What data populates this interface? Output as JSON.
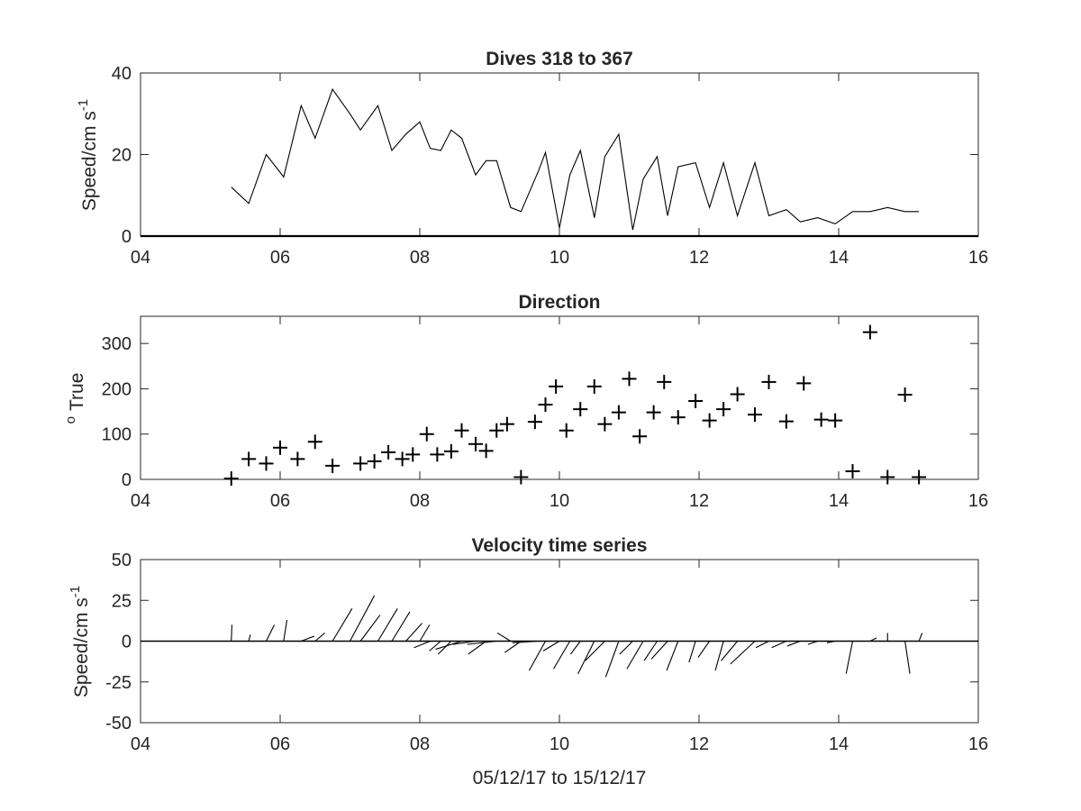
{
  "chart_data": [
    {
      "type": "line",
      "title": "Dives 318 to 367",
      "ylabel": "Speed/cm s",
      "ylabel_superscript": "-1",
      "xlim": [
        4,
        16
      ],
      "ylim": [
        0,
        40
      ],
      "xticks": [
        "04",
        "06",
        "08",
        "10",
        "12",
        "14",
        "16"
      ],
      "yticks": [
        "0",
        "20",
        "40"
      ],
      "color": "#000000",
      "x": [
        5.3,
        5.55,
        5.8,
        6.05,
        6.3,
        6.5,
        6.75,
        7.0,
        7.15,
        7.4,
        7.6,
        7.8,
        8.0,
        8.15,
        8.3,
        8.45,
        8.6,
        8.8,
        8.95,
        9.1,
        9.3,
        9.45,
        9.7,
        9.8,
        10.0,
        10.15,
        10.3,
        10.5,
        10.65,
        10.85,
        11.05,
        11.2,
        11.4,
        11.55,
        11.7,
        11.95,
        12.15,
        12.35,
        12.55,
        12.8,
        13.0,
        13.25,
        13.45,
        13.7,
        13.95,
        14.2,
        14.45,
        14.7,
        14.95,
        15.15
      ],
      "y": [
        12,
        8,
        20,
        14.5,
        32,
        24,
        36,
        30,
        26,
        32,
        21,
        25,
        28,
        21.5,
        21,
        26,
        24,
        15,
        18.5,
        18.5,
        7,
        6,
        16,
        20.5,
        2,
        15,
        21,
        4.5,
        19.5,
        25,
        1.5,
        14,
        19.5,
        5,
        17,
        18,
        7,
        18,
        5,
        18,
        5,
        6.5,
        3.5,
        4.5,
        3,
        6,
        6,
        7,
        6,
        6
      ]
    },
    {
      "type": "scatter",
      "title": "Direction",
      "ylabel": "True",
      "ylabel_prefix": "o",
      "marker": "+",
      "xlim": [
        4,
        16
      ],
      "ylim": [
        0,
        360
      ],
      "xticks": [
        "04",
        "06",
        "08",
        "10",
        "12",
        "14",
        "16"
      ],
      "yticks": [
        "0",
        "100",
        "200",
        "300"
      ],
      "color": "#000000",
      "x": [
        5.3,
        5.55,
        5.8,
        6.0,
        6.25,
        6.5,
        6.75,
        7.15,
        7.35,
        7.55,
        7.75,
        7.9,
        8.1,
        8.25,
        8.45,
        8.6,
        8.8,
        8.95,
        9.1,
        9.25,
        9.45,
        9.65,
        9.8,
        9.95,
        10.1,
        10.3,
        10.5,
        10.65,
        10.85,
        11.0,
        11.15,
        11.35,
        11.5,
        11.7,
        11.95,
        12.15,
        12.35,
        12.55,
        12.8,
        13.0,
        13.25,
        13.5,
        13.75,
        13.95,
        14.2,
        14.45,
        14.7,
        14.95,
        15.15
      ],
      "y": [
        2,
        45,
        35,
        70,
        45,
        83,
        30,
        35,
        40,
        60,
        45,
        55,
        100,
        55,
        62,
        108,
        78,
        63,
        108,
        122,
        5,
        127,
        165,
        205,
        108,
        155,
        205,
        122,
        148,
        222,
        95,
        148,
        215,
        137,
        173,
        130,
        155,
        188,
        143,
        215,
        128,
        212,
        132,
        130,
        18,
        325,
        5,
        187,
        5
      ]
    },
    {
      "type": "quiver",
      "title": "Velocity time series",
      "ylabel": "Speed/cm s",
      "ylabel_superscript": "-1",
      "xlabel": "05/12/17 to 15/12/17",
      "xlim": [
        4,
        16
      ],
      "ylim": [
        -50,
        50
      ],
      "xticks": [
        "04",
        "06",
        "08",
        "10",
        "12",
        "14",
        "16"
      ],
      "yticks": [
        "-50",
        "-25",
        "0",
        "25",
        "50"
      ],
      "color": "#000000",
      "x": [
        5.3,
        5.55,
        5.8,
        6.05,
        6.3,
        6.5,
        6.75,
        7.0,
        7.15,
        7.4,
        7.6,
        7.8,
        8.0,
        8.15,
        8.3,
        8.45,
        8.6,
        8.8,
        8.95,
        9.1,
        9.3,
        9.45,
        9.7,
        9.8,
        10.0,
        10.15,
        10.3,
        10.5,
        10.65,
        10.85,
        11.05,
        11.2,
        11.4,
        11.55,
        11.7,
        11.95,
        12.15,
        12.35,
        12.55,
        12.8,
        13.0,
        13.25,
        13.45,
        13.7,
        13.95,
        14.2,
        14.45,
        14.7,
        14.95,
        15.15
      ],
      "u": [
        0.4,
        1.0,
        5.0,
        2.0,
        8.0,
        6.0,
        12.0,
        15.0,
        12.0,
        12.0,
        11.0,
        10.0,
        6.0,
        -10.0,
        -7.0,
        -8.0,
        -16.0,
        -14.0,
        -11.0,
        -18.0,
        -8.0,
        -10.0,
        -16.0,
        -10.0,
        -10.0,
        -10.0,
        -6.0,
        -10.0,
        -12.0,
        -8.0,
        -8.0,
        -10.0,
        -8.0,
        -10.0,
        -7.0,
        -4.0,
        -7.0,
        -5.0,
        -10.0,
        -15.0,
        -8.0,
        -9.0,
        -8.0,
        -6.0,
        -5.0,
        -4.0,
        4.0,
        0.0,
        3.0,
        2.0
      ],
      "v": [
        10.0,
        4.0,
        10.0,
        13.0,
        3.0,
        5.0,
        20.0,
        28.0,
        16.0,
        20.0,
        18.0,
        11.0,
        10.0,
        -4.0,
        -6.0,
        -8.0,
        -5.0,
        -2.0,
        -8.0,
        -2.0,
        5.0,
        -7.0,
        -1.0,
        -18.0,
        -6.0,
        -17.0,
        -8.0,
        -20.0,
        -12.0,
        -22.0,
        -8.0,
        -17.0,
        -12.0,
        -11.0,
        -18.0,
        -13.0,
        -10.0,
        -18.0,
        -12.0,
        -14.0,
        -4.0,
        -4.0,
        -3.0,
        -2.0,
        -1.0,
        -20.0,
        2.0,
        5.0,
        -20.0,
        5.0
      ]
    }
  ]
}
